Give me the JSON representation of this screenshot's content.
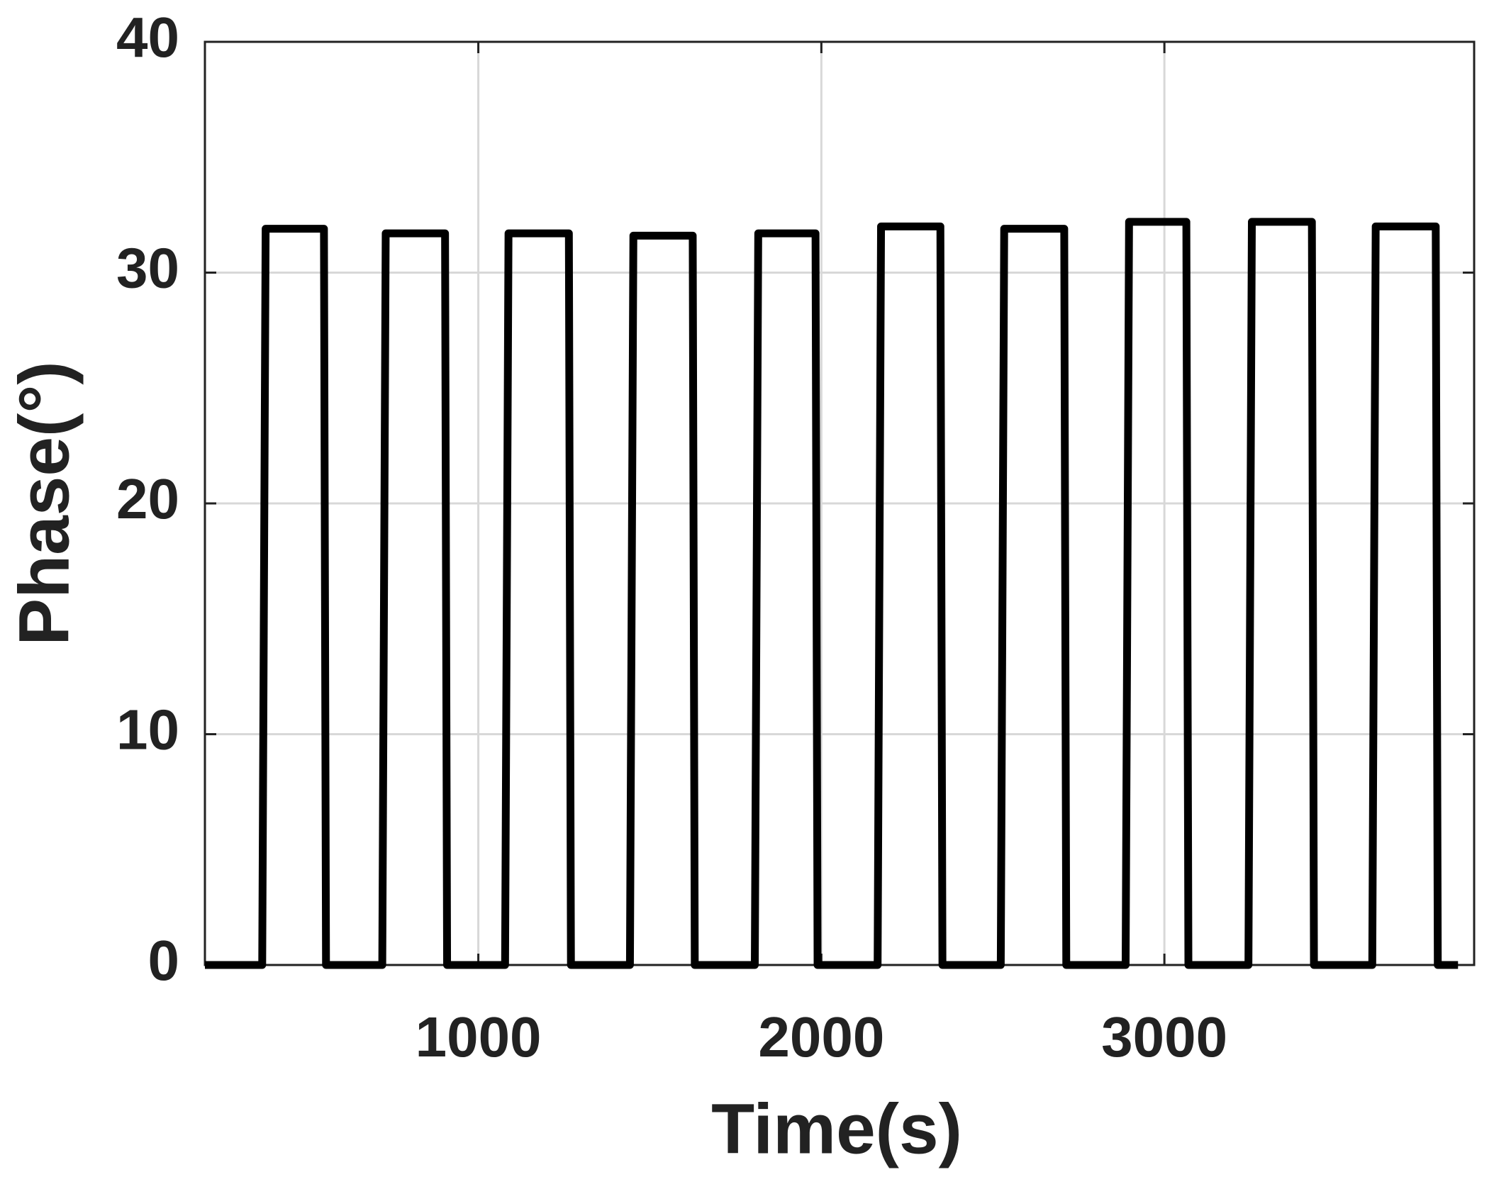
{
  "chart_data": {
    "type": "line",
    "xlabel": "Time(s)",
    "ylabel": "Phase(°)",
    "xlim": [
      203,
      3903
    ],
    "ylim": [
      0,
      40
    ],
    "xticks": [
      1000,
      2000,
      3000
    ],
    "yticks": [
      0,
      10,
      20,
      30,
      40
    ],
    "grid": true,
    "series": [
      {
        "color": "#000000",
        "x": [
          203,
          370,
          380,
          550,
          556,
          720,
          730,
          903,
          909,
          1078,
          1088,
          1264,
          1270,
          1442,
          1452,
          1625,
          1631,
          1806,
          1816,
          1983,
          1989,
          2164,
          2174,
          2347,
          2353,
          2523,
          2533,
          2708,
          2714,
          2887,
          2897,
          3064,
          3070,
          3245,
          3255,
          3430,
          3436,
          3606,
          3616,
          3791,
          3797,
          3856
        ],
        "values": [
          0,
          0,
          31.9,
          31.9,
          0,
          0,
          31.7,
          31.7,
          0,
          0,
          31.7,
          31.7,
          0,
          0,
          31.6,
          31.6,
          0,
          0,
          31.7,
          31.7,
          0,
          0,
          32.0,
          32.0,
          0,
          0,
          31.9,
          31.9,
          0,
          0,
          32.2,
          32.2,
          0,
          0,
          32.2,
          32.2,
          0,
          0,
          32.0,
          32.0,
          0,
          0
        ]
      }
    ]
  }
}
